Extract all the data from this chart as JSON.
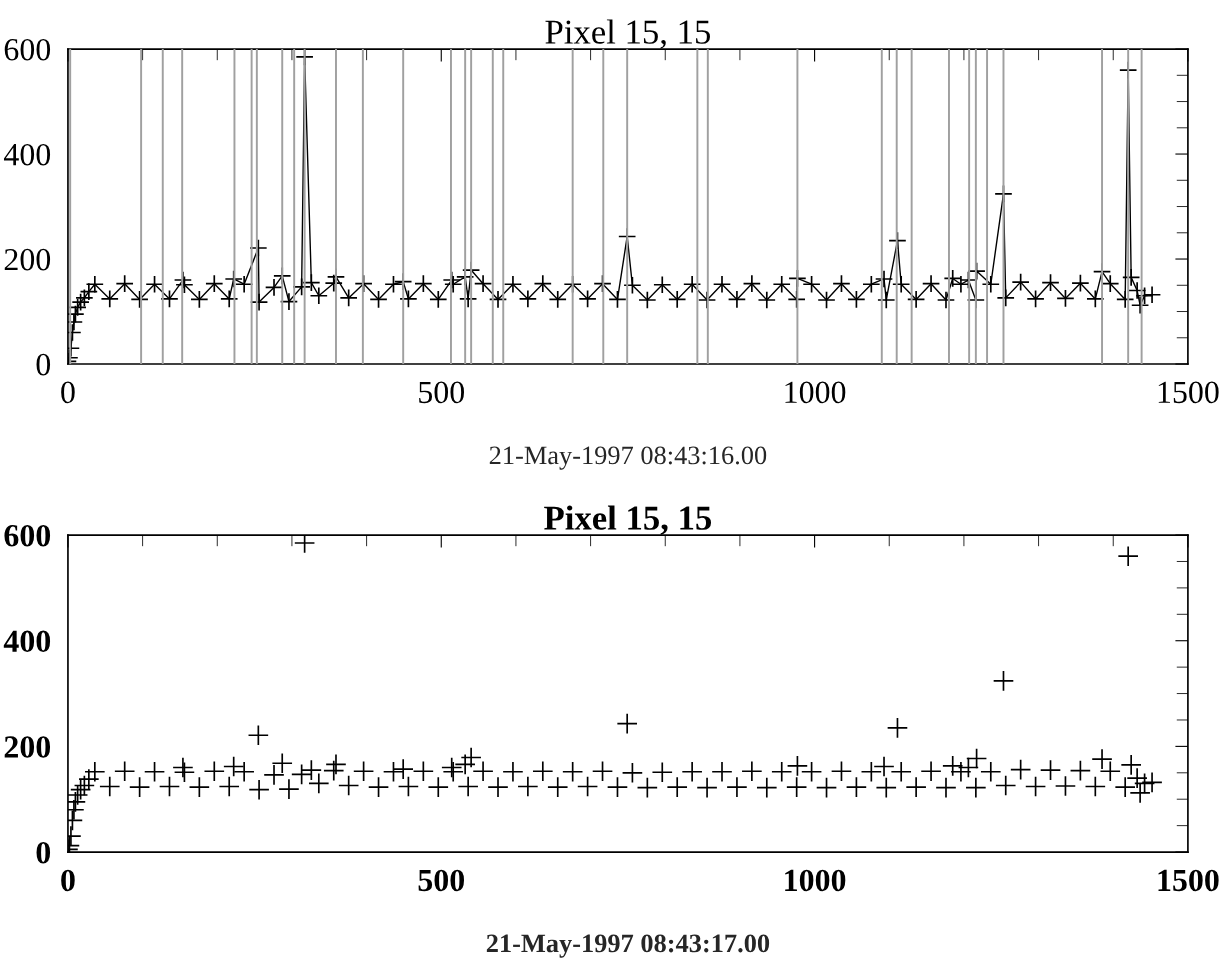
{
  "chart_data": [
    {
      "type": "line",
      "title": "Pixel 15, 15",
      "xlabel": "21-May-1997 08:43:16.00",
      "marker": "cross",
      "line_style": "solid",
      "grid": false,
      "legend": false,
      "xlim": [
        0,
        1500
      ],
      "ylim": [
        0,
        600
      ],
      "xticks": [
        0,
        500,
        1000,
        1500
      ],
      "yticks": [
        0,
        200,
        400,
        600
      ],
      "x": [
        0,
        2,
        4,
        6,
        8,
        10,
        13,
        17,
        22,
        28,
        36,
        56,
        76,
        96,
        116,
        136,
        154,
        156,
        176,
        196,
        216,
        222,
        236,
        255,
        256,
        276,
        287,
        296,
        313,
        317,
        326,
        336,
        356,
        359,
        376,
        396,
        416,
        436,
        449,
        456,
        476,
        496,
        514,
        516,
        532,
        536,
        540,
        556,
        576,
        596,
        616,
        636,
        656,
        676,
        696,
        716,
        736,
        749,
        756,
        776,
        796,
        816,
        836,
        856,
        876,
        896,
        916,
        936,
        956,
        976,
        977,
        996,
        1016,
        1036,
        1056,
        1076,
        1093,
        1096,
        1111,
        1116,
        1136,
        1156,
        1176,
        1185,
        1196,
        1206,
        1216,
        1217,
        1236,
        1253,
        1256,
        1276,
        1296,
        1316,
        1336,
        1356,
        1376,
        1385,
        1396,
        1416,
        1420,
        1424,
        1432,
        1436,
        1442,
        1452
      ],
      "series": [
        {
          "color": "#000000",
          "values": [
            5,
            12,
            30,
            60,
            80,
            95,
            108,
            118,
            126,
            138,
            152,
            124,
            153,
            123,
            152,
            124,
            160,
            151,
            123,
            153,
            124,
            162,
            152,
            221,
            118,
            146,
            168,
            119,
            147,
            585,
            155,
            130,
            154,
            166,
            126,
            153,
            123,
            152,
            157,
            124,
            153,
            123,
            160,
            152,
            166,
            124,
            179,
            153,
            123,
            152,
            124,
            153,
            123,
            152,
            124,
            153,
            123,
            243,
            150,
            122,
            151,
            123,
            152,
            122,
            152,
            123,
            153,
            122,
            152,
            123,
            163,
            152,
            122,
            153,
            123,
            152,
            162,
            122,
            235,
            152,
            123,
            153,
            122,
            163,
            152,
            160,
            122,
            177,
            152,
            324,
            126,
            156,
            124,
            155,
            125,
            154,
            124,
            176,
            153,
            123,
            560,
            165,
            140,
            112,
            130,
            132
          ]
        }
      ],
      "ref_lines": [
        {
          "axis": "x",
          "value": 3,
          "color": "#a0a0a0"
        },
        {
          "axis": "x",
          "value": 98,
          "color": "#a0a0a0"
        },
        {
          "axis": "x",
          "value": 127,
          "color": "#a0a0a0"
        },
        {
          "axis": "x",
          "value": 153,
          "color": "#a0a0a0"
        },
        {
          "axis": "x",
          "value": 223,
          "color": "#a0a0a0"
        },
        {
          "axis": "x",
          "value": 246,
          "color": "#a0a0a0"
        },
        {
          "axis": "x",
          "value": 253,
          "color": "#a0a0a0"
        },
        {
          "axis": "x",
          "value": 287,
          "color": "#a0a0a0"
        },
        {
          "axis": "x",
          "value": 303,
          "color": "#a0a0a0"
        },
        {
          "axis": "x",
          "value": 317,
          "color": "#a0a0a0"
        },
        {
          "axis": "x",
          "value": 359,
          "color": "#a0a0a0"
        },
        {
          "axis": "x",
          "value": 395,
          "color": "#a0a0a0"
        },
        {
          "axis": "x",
          "value": 449,
          "color": "#a0a0a0"
        },
        {
          "axis": "x",
          "value": 513,
          "color": "#a0a0a0"
        },
        {
          "axis": "x",
          "value": 532,
          "color": "#a0a0a0"
        },
        {
          "axis": "x",
          "value": 540,
          "color": "#a0a0a0"
        },
        {
          "axis": "x",
          "value": 569,
          "color": "#a0a0a0"
        },
        {
          "axis": "x",
          "value": 583,
          "color": "#a0a0a0"
        },
        {
          "axis": "x",
          "value": 676,
          "color": "#a0a0a0"
        },
        {
          "axis": "x",
          "value": 717,
          "color": "#a0a0a0"
        },
        {
          "axis": "x",
          "value": 749,
          "color": "#a0a0a0"
        },
        {
          "axis": "x",
          "value": 843,
          "color": "#a0a0a0"
        },
        {
          "axis": "x",
          "value": 857,
          "color": "#a0a0a0"
        },
        {
          "axis": "x",
          "value": 977,
          "color": "#a0a0a0"
        },
        {
          "axis": "x",
          "value": 1090,
          "color": "#a0a0a0"
        },
        {
          "axis": "x",
          "value": 1110,
          "color": "#a0a0a0"
        },
        {
          "axis": "x",
          "value": 1130,
          "color": "#a0a0a0"
        },
        {
          "axis": "x",
          "value": 1180,
          "color": "#a0a0a0"
        },
        {
          "axis": "x",
          "value": 1207,
          "color": "#a0a0a0"
        },
        {
          "axis": "x",
          "value": 1216,
          "color": "#a0a0a0"
        },
        {
          "axis": "x",
          "value": 1231,
          "color": "#a0a0a0"
        },
        {
          "axis": "x",
          "value": 1253,
          "color": "#a0a0a0"
        },
        {
          "axis": "x",
          "value": 1385,
          "color": "#a0a0a0"
        },
        {
          "axis": "x",
          "value": 1420,
          "color": "#a0a0a0"
        },
        {
          "axis": "x",
          "value": 1438,
          "color": "#a0a0a0"
        }
      ]
    },
    {
      "type": "scatter",
      "title": "Pixel 15, 15",
      "xlabel": "21-May-1997 08:43:17.00",
      "marker": "cross",
      "grid": false,
      "legend": false,
      "xlim": [
        0,
        1500
      ],
      "ylim": [
        0,
        600
      ],
      "xticks": [
        0,
        500,
        1000,
        1500
      ],
      "yticks": [
        0,
        200,
        400,
        600
      ],
      "x": [
        0,
        2,
        4,
        6,
        8,
        10,
        13,
        17,
        22,
        28,
        36,
        56,
        76,
        96,
        116,
        136,
        154,
        156,
        176,
        196,
        216,
        222,
        236,
        255,
        256,
        276,
        287,
        296,
        313,
        317,
        326,
        336,
        356,
        359,
        376,
        396,
        416,
        436,
        449,
        456,
        476,
        496,
        514,
        516,
        532,
        536,
        540,
        556,
        576,
        596,
        616,
        636,
        656,
        676,
        696,
        716,
        736,
        749,
        756,
        776,
        796,
        816,
        836,
        856,
        876,
        896,
        916,
        936,
        956,
        976,
        977,
        996,
        1016,
        1036,
        1056,
        1076,
        1093,
        1096,
        1111,
        1116,
        1136,
        1156,
        1176,
        1185,
        1196,
        1206,
        1216,
        1217,
        1236,
        1253,
        1256,
        1276,
        1296,
        1316,
        1336,
        1356,
        1376,
        1385,
        1396,
        1416,
        1420,
        1424,
        1432,
        1436,
        1442,
        1452
      ],
      "series": [
        {
          "color": "#000000",
          "values": [
            5,
            12,
            30,
            60,
            80,
            95,
            108,
            118,
            126,
            138,
            152,
            124,
            153,
            123,
            152,
            124,
            160,
            151,
            123,
            153,
            124,
            162,
            152,
            221,
            118,
            146,
            168,
            119,
            147,
            585,
            155,
            130,
            154,
            166,
            126,
            153,
            123,
            152,
            157,
            124,
            153,
            123,
            160,
            152,
            166,
            124,
            179,
            153,
            123,
            152,
            124,
            153,
            123,
            152,
            124,
            153,
            123,
            243,
            150,
            122,
            151,
            123,
            152,
            122,
            152,
            123,
            153,
            122,
            152,
            123,
            163,
            152,
            122,
            153,
            123,
            152,
            162,
            122,
            235,
            152,
            123,
            153,
            122,
            163,
            152,
            160,
            122,
            177,
            152,
            324,
            126,
            156,
            124,
            155,
            125,
            154,
            124,
            176,
            153,
            123,
            560,
            165,
            140,
            112,
            130,
            132
          ]
        }
      ]
    }
  ]
}
